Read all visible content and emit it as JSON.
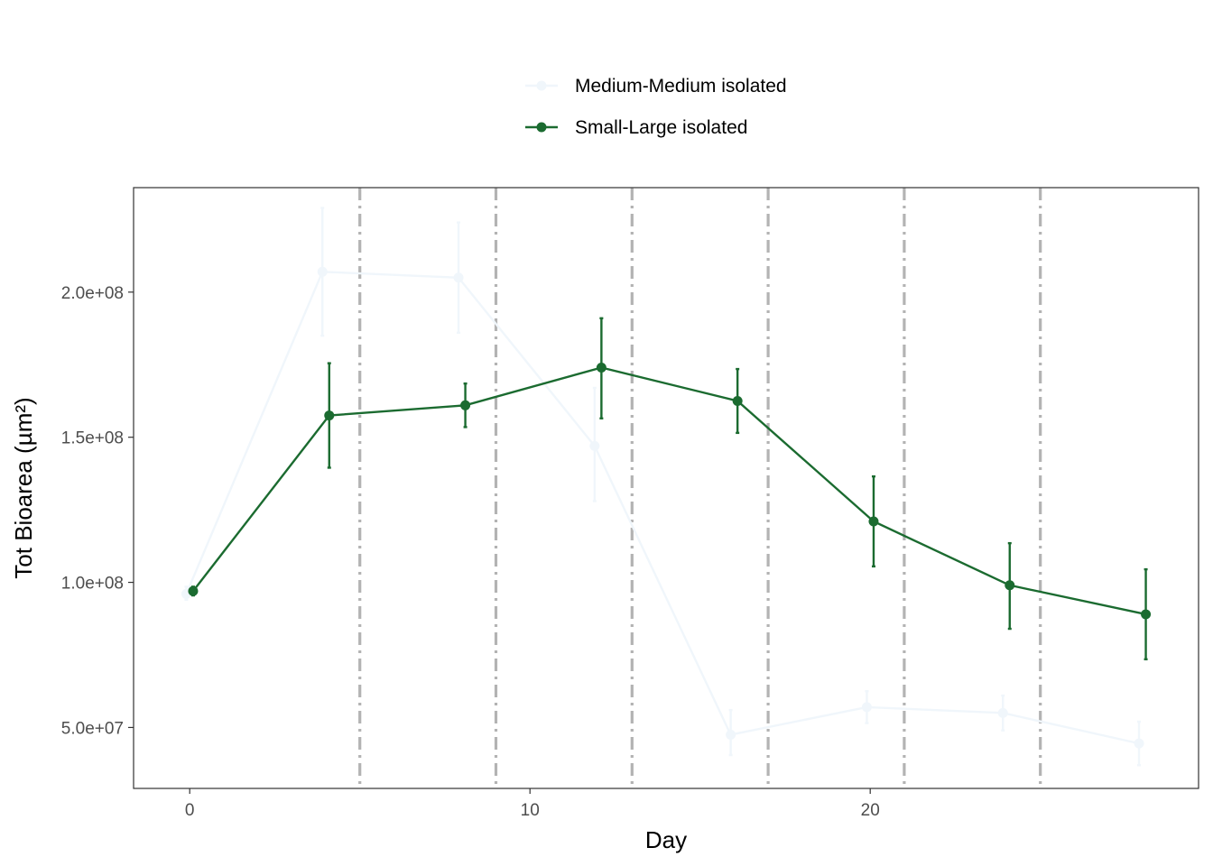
{
  "chart_data": {
    "type": "line",
    "title": "",
    "xlabel": "Day",
    "ylabel": "Tot Bioarea (µm²)",
    "xlim": [
      -1.65,
      29.65
    ],
    "ylim": [
      29000000,
      236000000
    ],
    "x_ticks": [
      0,
      10,
      20
    ],
    "x_tick_labels": [
      "0",
      "10",
      "20"
    ],
    "y_ticks": [
      50000000,
      100000000,
      150000000,
      200000000
    ],
    "y_tick_labels": [
      "5.0e+07",
      "1.0e+08",
      "1.5e+08",
      "2.0e+08"
    ],
    "vlines": [
      5,
      9,
      13,
      17,
      21,
      25
    ],
    "vline_color": "#b3b3b3",
    "grid": false,
    "legend_position": "top",
    "series": [
      {
        "name": "Medium-Medium isolated",
        "color": "#f0f6fb",
        "x": [
          -0.1,
          3.9,
          7.9,
          11.9,
          15.9,
          19.9,
          23.9,
          27.9
        ],
        "y": [
          96000000,
          207000000,
          205000000,
          147000000,
          47500000,
          57000000,
          55000000,
          44500000
        ],
        "err_low": [
          94000000,
          185000000,
          186000000,
          128000000,
          40500000,
          51500000,
          49000000,
          37000000
        ],
        "err_high": [
          98500000,
          229000000,
          224000000,
          167000000,
          56000000,
          62500000,
          61000000,
          52000000
        ]
      },
      {
        "name": "Small-Large isolated",
        "color": "#1b6b30",
        "x": [
          0.1,
          4.1,
          8.1,
          12.1,
          16.1,
          20.1,
          24.1,
          28.1
        ],
        "y": [
          97000000,
          157500000,
          161000000,
          174000000,
          162500000,
          121000000,
          99000000,
          89000000
        ],
        "err_low": [
          95500000,
          139500000,
          153500000,
          156500000,
          151500000,
          105500000,
          84000000,
          73500000
        ],
        "err_high": [
          98500000,
          175500000,
          168500000,
          191000000,
          173500000,
          136500000,
          113500000,
          104500000
        ]
      }
    ]
  }
}
